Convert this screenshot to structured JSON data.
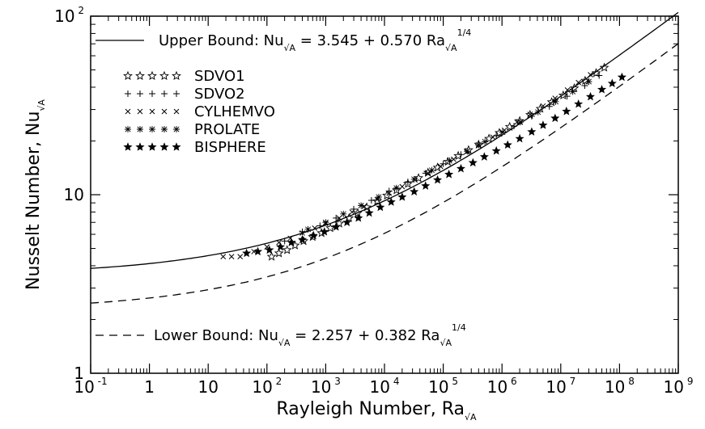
{
  "chart_data": {
    "type": "scatter",
    "xlabel": "Rayleigh Number, Ra",
    "xlabel_sub": "√A",
    "ylabel": "Nusselt Number, Nu",
    "ylabel_sub": "√A",
    "x_scale": "log",
    "y_scale": "log",
    "xlim": [
      0.1,
      1000000000
    ],
    "ylim": [
      1,
      100
    ],
    "x_ticks": [
      {
        "value": 0.1,
        "base": "10",
        "exp": "-1"
      },
      {
        "value": 1,
        "base": "1",
        "exp": ""
      },
      {
        "value": 10,
        "base": "10",
        "exp": ""
      },
      {
        "value": 100,
        "base": "10",
        "exp": "2"
      },
      {
        "value": 1000,
        "base": "10",
        "exp": "3"
      },
      {
        "value": 10000,
        "base": "10",
        "exp": "4"
      },
      {
        "value": 100000,
        "base": "10",
        "exp": "5"
      },
      {
        "value": 1000000,
        "base": "10",
        "exp": "6"
      },
      {
        "value": 10000000,
        "base": "10",
        "exp": "7"
      },
      {
        "value": 100000000,
        "base": "10",
        "exp": "8"
      },
      {
        "value": 1000000000,
        "base": "10",
        "exp": "9"
      }
    ],
    "y_ticks": [
      {
        "value": 1,
        "base": "1",
        "exp": ""
      },
      {
        "value": 10,
        "base": "10",
        "exp": ""
      },
      {
        "value": 100,
        "base": "10",
        "exp": "2"
      }
    ],
    "grid": false,
    "legend_position": "top-left",
    "bounds": [
      {
        "label": "Upper Bound:",
        "lhs": "Nu",
        "lhs_sub": "√A",
        "rhs": "=  3.545  +  0.570  Ra",
        "rhs_sub": "√A",
        "rhs_exp": "1/4",
        "a": 3.545,
        "b": 0.57,
        "line_style": "solid"
      },
      {
        "label": "Lower Bound:",
        "lhs": "Nu",
        "lhs_sub": "√A",
        "rhs": "=  2.257  +  0.382  Ra",
        "rhs_sub": "√A",
        "rhs_exp": "1/4",
        "a": 2.257,
        "b": 0.382,
        "line_style": "dashed"
      }
    ],
    "series": [
      {
        "name": "SDVO1",
        "marker": "open-star",
        "points": [
          [
            120,
            4.5
          ],
          [
            160,
            4.7
          ],
          [
            220,
            4.9
          ],
          [
            300,
            5.2
          ],
          [
            420,
            5.5
          ],
          [
            600,
            5.8
          ],
          [
            850,
            6.1
          ],
          [
            1200,
            6.5
          ],
          [
            1700,
            6.9
          ],
          [
            2500,
            7.4
          ],
          [
            3500,
            7.9
          ],
          [
            5000,
            8.5
          ],
          [
            7500,
            9.2
          ],
          [
            11000,
            9.9
          ],
          [
            16000,
            10.6
          ],
          [
            25000,
            11.5
          ],
          [
            38000,
            12.4
          ],
          [
            55000,
            13.3
          ],
          [
            80000,
            14.2
          ],
          [
            120000,
            15.3
          ],
          [
            180000,
            16.5
          ],
          [
            270000,
            17.8
          ],
          [
            400000,
            19.1
          ],
          [
            600000,
            20.6
          ],
          [
            900000,
            22.2
          ],
          [
            1350000,
            24.0
          ],
          [
            2000000,
            25.9
          ],
          [
            3000000,
            28.0
          ],
          [
            4500000,
            30.3
          ],
          [
            7000000,
            33.0
          ],
          [
            11000000,
            36.0
          ],
          [
            17000000,
            39.5
          ],
          [
            26000000,
            43.5
          ],
          [
            40000000,
            48.0
          ],
          [
            55000000,
            51.5
          ]
        ]
      },
      {
        "name": "SDVO2",
        "marker": "plus",
        "points": [
          [
            200,
            5.5
          ],
          [
            400,
            6.2
          ],
          [
            800,
            6.7
          ],
          [
            1500,
            7.4
          ],
          [
            3000,
            8.3
          ],
          [
            6000,
            9.3
          ],
          [
            12000,
            10.5
          ],
          [
            25000,
            11.8
          ],
          [
            50000,
            13.2
          ],
          [
            100000,
            14.9
          ],
          [
            200000,
            16.8
          ],
          [
            400000,
            19.0
          ],
          [
            800000,
            21.4
          ],
          [
            1600000,
            24.2
          ],
          [
            3200000,
            27.5
          ],
          [
            6400000,
            31.2
          ],
          [
            12800000,
            35.6
          ],
          [
            25600000,
            40.8
          ],
          [
            45000000,
            46.5
          ]
        ]
      },
      {
        "name": "CYLHEMVO",
        "marker": "x",
        "points": [
          [
            18,
            4.5
          ],
          [
            25,
            4.5
          ],
          [
            35,
            4.5
          ],
          [
            60,
            4.8
          ],
          [
            100,
            5.1
          ],
          [
            160,
            5.4
          ],
          [
            250,
            5.7
          ],
          [
            400,
            6.1
          ],
          [
            650,
            6.5
          ],
          [
            1000,
            6.9
          ],
          [
            1700,
            7.4
          ],
          [
            2800,
            8.0
          ],
          [
            4500,
            8.6
          ],
          [
            7500,
            9.4
          ],
          [
            12000,
            10.2
          ],
          [
            20000,
            11.1
          ],
          [
            33000,
            12.1
          ],
          [
            55000,
            13.2
          ],
          [
            90000,
            14.4
          ],
          [
            150000,
            15.8
          ],
          [
            250000,
            17.4
          ],
          [
            400000,
            19.0
          ],
          [
            700000,
            21.0
          ],
          [
            1100000,
            23.0
          ],
          [
            1800000,
            25.5
          ],
          [
            3000000,
            28.2
          ],
          [
            5000000,
            31.4
          ],
          [
            8000000,
            34.7
          ],
          [
            13000000,
            38.6
          ],
          [
            20000000,
            42.5
          ],
          [
            32000000,
            47.0
          ]
        ]
      },
      {
        "name": "PROLATE",
        "marker": "asterisk",
        "points": [
          [
            500,
            6.4
          ],
          [
            1000,
            7.0
          ],
          [
            2000,
            7.8
          ],
          [
            4000,
            8.7
          ],
          [
            8000,
            9.7
          ],
          [
            16000,
            10.9
          ],
          [
            32000,
            12.2
          ],
          [
            64000,
            13.7
          ],
          [
            128000,
            15.5
          ],
          [
            256000,
            17.5
          ],
          [
            512000,
            19.8
          ],
          [
            1024000,
            22.4
          ],
          [
            2048000,
            25.5
          ],
          [
            4096000,
            29.0
          ],
          [
            8192000,
            33.2
          ],
          [
            16000000,
            37.8
          ],
          [
            30000000,
            43.0
          ]
        ]
      },
      {
        "name": "BISPHERE",
        "marker": "filled-star",
        "points": [
          [
            45,
            4.7
          ],
          [
            70,
            4.8
          ],
          [
            110,
            4.9
          ],
          [
            170,
            5.1
          ],
          [
            260,
            5.4
          ],
          [
            400,
            5.6
          ],
          [
            620,
            5.9
          ],
          [
            950,
            6.2
          ],
          [
            1500,
            6.6
          ],
          [
            2300,
            7.0
          ],
          [
            3600,
            7.4
          ],
          [
            5500,
            7.9
          ],
          [
            8500,
            8.5
          ],
          [
            13000,
            9.1
          ],
          [
            20000,
            9.7
          ],
          [
            32000,
            10.4
          ],
          [
            50000,
            11.2
          ],
          [
            80000,
            12.1
          ],
          [
            125000,
            13.0
          ],
          [
            200000,
            14.0
          ],
          [
            320000,
            15.1
          ],
          [
            500000,
            16.3
          ],
          [
            800000,
            17.6
          ],
          [
            1250000,
            19.0
          ],
          [
            2000000,
            20.6
          ],
          [
            3200000,
            22.5
          ],
          [
            5000000,
            24.5
          ],
          [
            8000000,
            26.8
          ],
          [
            12500000,
            29.3
          ],
          [
            20000000,
            32.2
          ],
          [
            32000000,
            35.4
          ],
          [
            50000000,
            38.8
          ],
          [
            75000000,
            42.0
          ],
          [
            110000000,
            45.5
          ]
        ]
      }
    ]
  }
}
